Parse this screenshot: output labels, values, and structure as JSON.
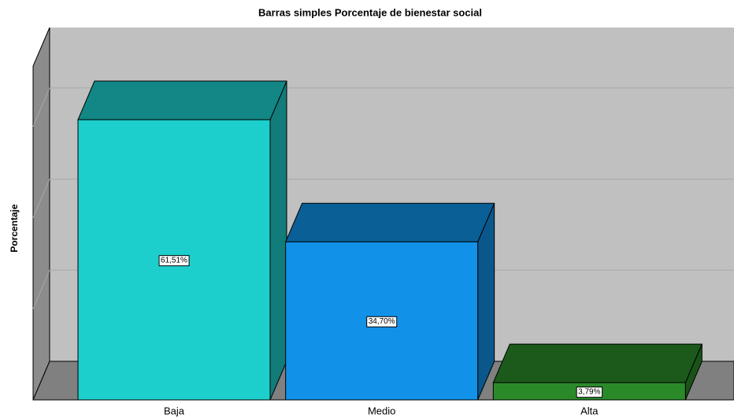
{
  "chart_data": {
    "type": "bar3d",
    "title": "Barras simples Porcentaje de bienestar social",
    "y_label": "Porcentaje",
    "categories": [
      "Baja",
      "Medio",
      "Alta"
    ],
    "values": [
      61.51,
      34.7,
      3.79
    ],
    "value_labels": [
      "61,51%",
      "34,70%",
      "3,79%"
    ],
    "colors": [
      "#1ccfcc",
      "#1192e8",
      "#2a8a2a"
    ],
    "ylim": [
      0,
      75
    ],
    "yticks": [
      0,
      20,
      40,
      60
    ],
    "grid": true
  }
}
